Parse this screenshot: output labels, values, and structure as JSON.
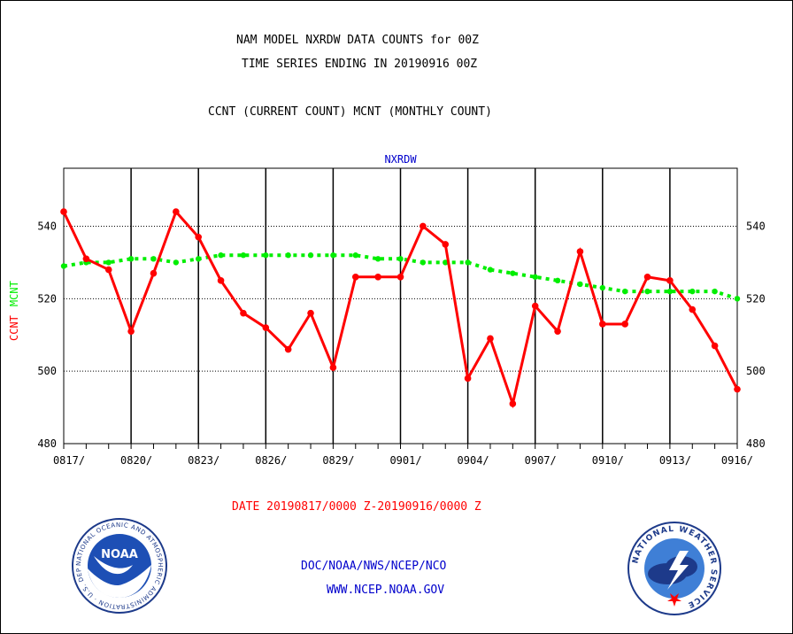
{
  "header": {
    "title_line1": "NAM MODEL NXRDW DATA COUNTS for 00Z",
    "title_line2": "TIME SERIES ENDING IN 20190916 00Z",
    "subtitle": "CCNT (CURRENT COUNT) MCNT (MONTHLY COUNT)"
  },
  "footer": {
    "date_range": "DATE 20190817/0000 Z-20190916/0000 Z",
    "org": "DOC/NOAA/NWS/NCEP/NCO",
    "url": "WWW.NCEP.NOAA.GOV"
  },
  "logos": {
    "noaa_text": "NOAA",
    "noaa_ring_text": "NATIONAL OCEANIC AND ATMOSPHERIC ADMINISTRATION · U.S. DEPARTMENT OF COMMERCE",
    "nws_ring_text": "NATIONAL WEATHER SERVICE"
  },
  "colors": {
    "ccnt": "#ff0000",
    "mcnt": "#00ee00",
    "label_blue": "#0000cc",
    "date_red": "#ff0000"
  },
  "chart_data": {
    "type": "line",
    "title": "NXRDW",
    "ylabel_ccnt": "CCNT",
    "ylabel_mcnt": "MCNT",
    "ylim": [
      480,
      556
    ],
    "yticks": [
      480,
      500,
      520,
      540
    ],
    "grid": true,
    "x_days": [
      "0817",
      "0818",
      "0819",
      "0820",
      "0821",
      "0822",
      "0823",
      "0824",
      "0825",
      "0826",
      "0827",
      "0828",
      "0829",
      "0830",
      "0831",
      "0901",
      "0902",
      "0903",
      "0904",
      "0905",
      "0906",
      "0907",
      "0908",
      "0909",
      "0910",
      "0911",
      "0912",
      "0913",
      "0914",
      "0915",
      "0916"
    ],
    "xtick_labels": [
      "0817/",
      "0820/",
      "0823/",
      "0826/",
      "0829/",
      "0901/",
      "0904/",
      "0907/",
      "0910/",
      "0913/",
      "0916/"
    ],
    "series": [
      {
        "name": "CCNT",
        "style": "solid",
        "values": [
          544,
          531,
          528,
          511,
          527,
          544,
          537,
          525,
          516,
          512,
          506,
          516,
          501,
          526,
          526,
          526,
          540,
          535,
          498,
          509,
          491,
          518,
          511,
          533,
          513,
          513,
          526,
          525,
          517,
          507,
          495
        ]
      },
      {
        "name": "MCNT",
        "style": "dotted",
        "values": [
          529,
          530,
          530,
          531,
          531,
          530,
          531,
          532,
          532,
          532,
          532,
          532,
          532,
          532,
          531,
          531,
          530,
          530,
          530,
          528,
          527,
          526,
          525,
          524,
          523,
          522,
          522,
          522,
          522,
          522,
          520
        ]
      }
    ]
  }
}
